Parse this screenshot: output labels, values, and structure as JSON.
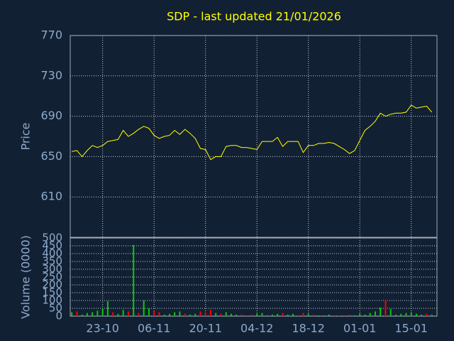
{
  "chart_data": [
    {
      "type": "line",
      "title": "SDP - last updated 21/01/2026",
      "ylabel": "Price",
      "color": "#ffff00",
      "grid": true,
      "x": [
        "15-10",
        "16-10",
        "17-10",
        "20-10",
        "21-10",
        "22-10",
        "23-10",
        "24-10",
        "27-10",
        "28-10",
        "29-10",
        "30-10",
        "31-10",
        "03-11",
        "04-11",
        "05-11",
        "06-11",
        "07-11",
        "10-11",
        "11-11",
        "12-11",
        "13-11",
        "14-11",
        "17-11",
        "18-11",
        "19-11",
        "20-11",
        "21-11",
        "24-11",
        "25-11",
        "26-11",
        "27-11",
        "28-11",
        "01-12",
        "02-12",
        "03-12",
        "04-12",
        "05-12",
        "08-12",
        "09-12",
        "10-12",
        "11-12",
        "12-12",
        "15-12",
        "16-12",
        "17-12",
        "18-12",
        "19-12",
        "22-12",
        "23-12",
        "24-12",
        "25-12",
        "26-12",
        "29-12",
        "30-12",
        "31-12",
        "01-01",
        "02-01",
        "05-01",
        "06-01",
        "07-01",
        "08-01",
        "09-01",
        "12-01",
        "13-01",
        "14-01",
        "15-01",
        "16-01",
        "19-01",
        "20-01",
        "21-01"
      ],
      "values": [
        655,
        656,
        650,
        656,
        661,
        659,
        661,
        665,
        666,
        667,
        676,
        670,
        673,
        677,
        680,
        678,
        671,
        668,
        670,
        671,
        676,
        672,
        677,
        673,
        668,
        658,
        657,
        647,
        650,
        650,
        660,
        661,
        661,
        659,
        659,
        658,
        657,
        665,
        665,
        665,
        669,
        660,
        665,
        665,
        665,
        654,
        661,
        661,
        663,
        663,
        664,
        663,
        660,
        657,
        653,
        656,
        666,
        676,
        680,
        685,
        693,
        690,
        692,
        693,
        693,
        694,
        701,
        698,
        699,
        700,
        694
      ],
      "ylim": [
        570,
        770
      ],
      "yticks": [
        610,
        650,
        690,
        730,
        770
      ]
    },
    {
      "type": "bar",
      "ylabel": "Volume (0000)",
      "grid": true,
      "values": [
        25,
        30,
        10,
        20,
        25,
        35,
        50,
        95,
        25,
        15,
        40,
        30,
        455,
        20,
        100,
        50,
        35,
        25,
        10,
        15,
        25,
        30,
        15,
        10,
        15,
        30,
        25,
        40,
        20,
        15,
        25,
        15,
        10,
        10,
        5,
        10,
        15,
        20,
        5,
        10,
        15,
        20,
        10,
        15,
        5,
        20,
        15,
        10,
        5,
        5,
        10,
        5,
        5,
        5,
        10,
        5,
        15,
        10,
        20,
        30,
        55,
        105,
        45,
        10,
        15,
        20,
        25,
        15,
        10,
        15,
        10
      ],
      "colors": [
        "#00cc00",
        "#ff0000",
        "#00cc00",
        "#00cc00",
        "#00cc00",
        "#00cc00",
        "#00cc00",
        "#00cc00",
        "#ff0000",
        "#00cc00",
        "#00cc00",
        "#ff0000",
        "#00cc00",
        "#ff0000",
        "#00cc00",
        "#00cc00",
        "#ff0000",
        "#ff0000",
        "#00cc00",
        "#00cc00",
        "#00cc00",
        "#00cc00",
        "#ff0000",
        "#00cc00",
        "#00cc00",
        "#ff0000",
        "#ff0000",
        "#ff0000",
        "#00cc00",
        "#ff0000",
        "#00cc00",
        "#00cc00",
        "#00cc00",
        "#ff0000",
        "#ff0000",
        "#ff0000",
        "#00cc00",
        "#00cc00",
        "#00cc00",
        "#00cc00",
        "#00cc00",
        "#ff0000",
        "#00cc00",
        "#00cc00",
        "#ff0000",
        "#ff0000",
        "#00cc00",
        "#ff0000",
        "#00cc00",
        "#00cc00",
        "#00cc00",
        "#ff0000",
        "#ff0000",
        "#ff0000",
        "#ff0000",
        "#00cc00",
        "#00cc00",
        "#00cc00",
        "#00cc00",
        "#00cc00",
        "#00cc00",
        "#ff0000",
        "#00cc00",
        "#00cc00",
        "#00cc00",
        "#00cc00",
        "#00cc00",
        "#00cc00",
        "#00cc00",
        "#ff0000",
        "#00cc00"
      ],
      "ylim": [
        0,
        500
      ],
      "yticks": [
        0,
        50,
        100,
        150,
        200,
        250,
        300,
        350,
        400,
        450,
        500
      ],
      "xticks": [
        "23-10",
        "06-11",
        "20-11",
        "04-12",
        "18-12",
        "01-01",
        "15-01"
      ]
    }
  ]
}
